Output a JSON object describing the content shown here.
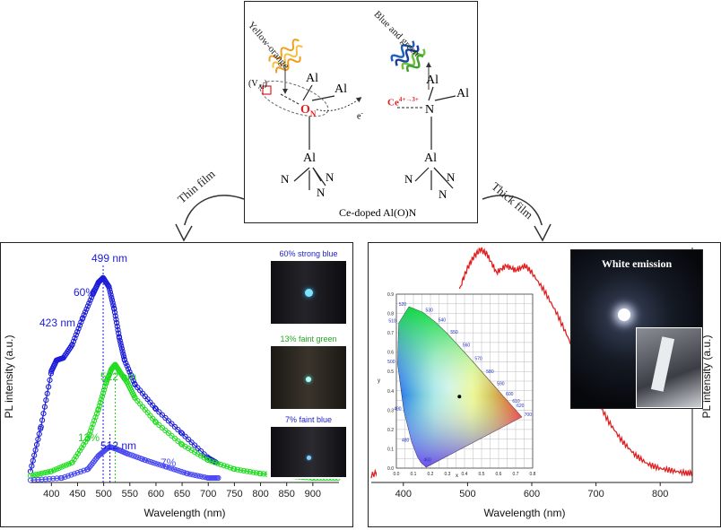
{
  "schematic": {
    "left_light": "Yellow-orange",
    "right_light": "Blue and green",
    "vacancy": "(V",
    "vacancy_sub": "Al",
    "vacancy_close": ")",
    "oxygen": "O",
    "oxygen_sub": "N",
    "electron": "e",
    "electron_sup": "-",
    "cerium": "Ce",
    "cerium_sup": "4+→3+",
    "al": "Al",
    "n": "N",
    "caption": "Ce-doped Al(O)N"
  },
  "arrows": {
    "left": "Thin film",
    "right": "Thick film"
  },
  "photos_left": [
    {
      "caption": "60% strong blue",
      "color": "#2222cc"
    },
    {
      "caption": "13% faint green",
      "color": "#22aa22"
    },
    {
      "caption": "7% faint blue",
      "color": "#2222cc"
    }
  ],
  "photo_right": {
    "caption": "White emission"
  },
  "chart_data": [
    {
      "type": "line",
      "xlabel": "Wavelength (nm)",
      "ylabel": "PL intensity (a.u.)",
      "xlim": [
        360,
        950
      ],
      "xticks": [
        "400",
        "450",
        "500",
        "550",
        "600",
        "650",
        "700",
        "750",
        "800",
        "850",
        "900"
      ],
      "series": [
        {
          "name": "60%",
          "color": "#1c1cd8",
          "x": [
            360,
            380,
            400,
            410,
            423,
            440,
            460,
            480,
            490,
            499,
            510,
            520,
            530,
            540,
            560,
            600,
            650,
            700,
            715
          ],
          "y": [
            0.05,
            0.25,
            0.5,
            0.55,
            0.56,
            0.62,
            0.74,
            0.85,
            0.9,
            0.92,
            0.88,
            0.78,
            0.65,
            0.55,
            0.44,
            0.33,
            0.22,
            0.11,
            0.09
          ]
        },
        {
          "name": "13%",
          "color": "#22dd22",
          "x": [
            360,
            400,
            440,
            470,
            490,
            505,
            515,
            522,
            530,
            545,
            560,
            600,
            650,
            700,
            750,
            800,
            850,
            900,
            950
          ],
          "y": [
            0.03,
            0.05,
            0.09,
            0.2,
            0.33,
            0.45,
            0.51,
            0.53,
            0.5,
            0.45,
            0.38,
            0.27,
            0.17,
            0.1,
            0.06,
            0.04,
            0.03,
            0.02,
            0.02
          ]
        },
        {
          "name": "7%",
          "color": "#4a4af0",
          "x": [
            360,
            420,
            470,
            490,
            505,
            512,
            525,
            545,
            580,
            620,
            660,
            700,
            720
          ],
          "y": [
            0.01,
            0.02,
            0.06,
            0.12,
            0.15,
            0.16,
            0.15,
            0.13,
            0.1,
            0.07,
            0.04,
            0.02,
            0.02
          ]
        }
      ],
      "annotations": [
        "499 nm",
        "423 nm",
        "522 nm",
        "512 nm",
        "60%",
        "13%",
        "7%"
      ],
      "vlines_nm": [
        499,
        512,
        522
      ]
    },
    {
      "type": "line",
      "xlabel": "Wavelength (nm)",
      "ylabel": "PL intensity (a.u.)",
      "xlim": [
        350,
        850
      ],
      "xticks": [
        "400",
        "500",
        "600",
        "700",
        "800"
      ],
      "series": [
        {
          "color": "#e02020",
          "x": [
            350,
            370,
            390,
            410,
            430,
            450,
            470,
            490,
            500,
            510,
            520,
            530,
            545,
            560,
            575,
            590,
            600,
            620,
            640,
            660,
            680,
            700,
            720,
            740,
            760,
            780,
            800,
            820,
            840,
            850
          ],
          "y": [
            0.03,
            0.06,
            0.12,
            0.22,
            0.35,
            0.5,
            0.68,
            0.85,
            0.92,
            0.97,
            1.0,
            0.98,
            0.9,
            0.93,
            0.91,
            0.93,
            0.9,
            0.82,
            0.72,
            0.6,
            0.48,
            0.36,
            0.26,
            0.18,
            0.12,
            0.08,
            0.06,
            0.05,
            0.04,
            0.04
          ]
        }
      ]
    },
    {
      "type": "scatter",
      "title_note": "CIE 1931 chromaticity diagram inset",
      "xticks": [
        "0.0",
        "0.1",
        "0.2",
        "0.3",
        "0.4",
        "0.5",
        "0.6",
        "0.7",
        "0.8"
      ],
      "yticks": [
        "0.0",
        "0.1",
        "0.2",
        "0.3",
        "0.4",
        "0.5",
        "0.6",
        "0.7",
        "0.8",
        "0.9"
      ],
      "axis_x": "x",
      "axis_y": "y",
      "point": {
        "x": 0.37,
        "y": 0.37
      },
      "wavelength_labels": [
        "460",
        "480",
        "490",
        "500",
        "510",
        "520",
        "530",
        "540",
        "550",
        "560",
        "570",
        "580",
        "590",
        "600",
        "610",
        "620",
        "700"
      ]
    }
  ]
}
